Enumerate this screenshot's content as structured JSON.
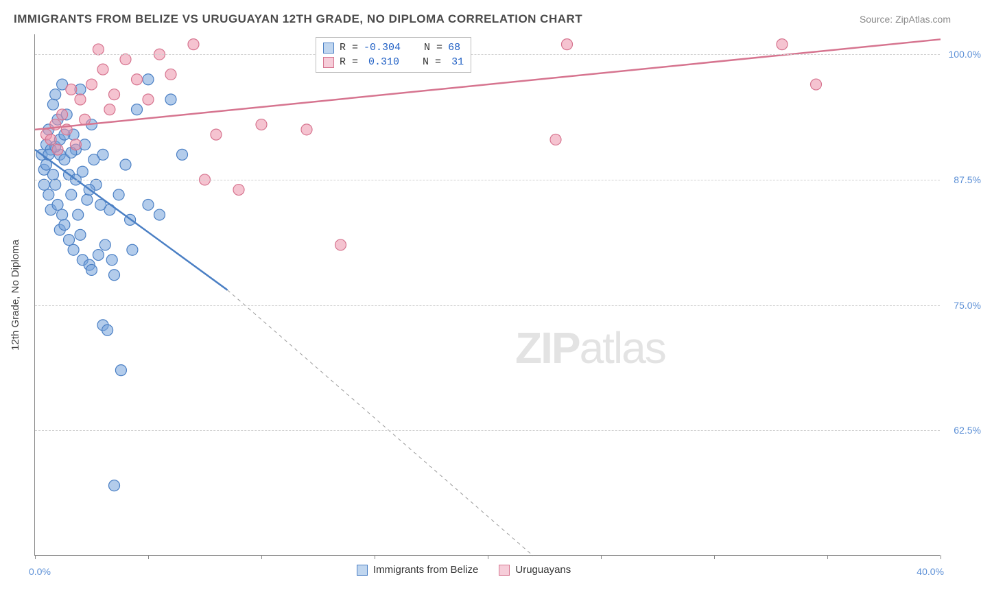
{
  "title": "IMMIGRANTS FROM BELIZE VS URUGUAYAN 12TH GRADE, NO DIPLOMA CORRELATION CHART",
  "source_prefix": "Source: ",
  "source_name": "ZipAtlas.com",
  "y_axis_label": "12th Grade, No Diploma",
  "watermark_part1": "ZIP",
  "watermark_part2": "atlas",
  "chart": {
    "type": "scatter",
    "xlim": [
      0,
      40
    ],
    "ylim": [
      50,
      102
    ],
    "x_start_label": "0.0%",
    "x_end_label": "40.0%",
    "x_ticks": [
      0,
      5,
      10,
      15,
      20,
      25,
      30,
      35,
      40
    ],
    "y_gridlines": [
      {
        "value": 62.5,
        "label": "62.5%"
      },
      {
        "value": 75.0,
        "label": "75.0%"
      },
      {
        "value": 87.5,
        "label": "87.5%"
      },
      {
        "value": 100.0,
        "label": "100.0%"
      }
    ],
    "background_color": "#ffffff",
    "grid_color": "#d0d0d0",
    "axis_color": "#888888",
    "label_color": "#5b8fd6",
    "marker_radius": 8,
    "marker_opacity": 0.55,
    "series": [
      {
        "name": "Immigrants from Belize",
        "color": "#74a3db",
        "stroke": "#4a7fc4",
        "R": "-0.304",
        "N": "68",
        "trend": {
          "x1": 0,
          "y1": 90.5,
          "x2": 8.5,
          "y2": 76.5,
          "x2_dash": 22,
          "y2_dash": 50
        },
        "points": [
          [
            0.3,
            90.0
          ],
          [
            0.4,
            88.5
          ],
          [
            0.5,
            91.0
          ],
          [
            0.5,
            89.0
          ],
          [
            0.6,
            92.5
          ],
          [
            0.6,
            86.0
          ],
          [
            0.7,
            90.5
          ],
          [
            0.7,
            84.5
          ],
          [
            0.8,
            95.0
          ],
          [
            0.8,
            88.0
          ],
          [
            0.9,
            96.0
          ],
          [
            0.9,
            87.0
          ],
          [
            1.0,
            93.5
          ],
          [
            1.0,
            85.0
          ],
          [
            1.1,
            90.0
          ],
          [
            1.1,
            82.5
          ],
          [
            1.2,
            97.0
          ],
          [
            1.2,
            84.0
          ],
          [
            1.3,
            89.5
          ],
          [
            1.3,
            83.0
          ],
          [
            1.4,
            94.0
          ],
          [
            1.5,
            88.0
          ],
          [
            1.5,
            81.5
          ],
          [
            1.6,
            86.0
          ],
          [
            1.7,
            92.0
          ],
          [
            1.7,
            80.5
          ],
          [
            1.8,
            90.5
          ],
          [
            1.9,
            84.0
          ],
          [
            2.0,
            96.5
          ],
          [
            2.0,
            82.0
          ],
          [
            2.1,
            79.5
          ],
          [
            2.2,
            91.0
          ],
          [
            2.3,
            85.5
          ],
          [
            2.4,
            79.0
          ],
          [
            2.5,
            93.0
          ],
          [
            2.5,
            78.5
          ],
          [
            2.7,
            87.0
          ],
          [
            2.8,
            80.0
          ],
          [
            3.0,
            90.0
          ],
          [
            3.0,
            73.0
          ],
          [
            3.2,
            72.5
          ],
          [
            3.3,
            84.5
          ],
          [
            3.5,
            78.0
          ],
          [
            3.5,
            57.0
          ],
          [
            3.8,
            68.5
          ],
          [
            4.0,
            89.0
          ],
          [
            4.2,
            83.5
          ],
          [
            4.5,
            94.5
          ],
          [
            5.0,
            85.0
          ],
          [
            5.0,
            97.5
          ],
          [
            5.5,
            84.0
          ],
          [
            6.0,
            95.5
          ],
          [
            6.5,
            90.0
          ],
          [
            0.4,
            87.0
          ],
          [
            0.6,
            90.0
          ],
          [
            0.9,
            90.8
          ],
          [
            1.1,
            91.5
          ],
          [
            1.3,
            92.0
          ],
          [
            1.6,
            90.2
          ],
          [
            1.8,
            87.5
          ],
          [
            2.1,
            88.3
          ],
          [
            2.4,
            86.5
          ],
          [
            2.6,
            89.5
          ],
          [
            2.9,
            85.0
          ],
          [
            3.1,
            81.0
          ],
          [
            3.4,
            79.5
          ],
          [
            3.7,
            86.0
          ],
          [
            4.3,
            80.5
          ]
        ]
      },
      {
        "name": "Uruguayans",
        "color": "#ec91aa",
        "stroke": "#d6748f",
        "R": "0.310",
        "N": "31",
        "trend": {
          "x1": 0,
          "y1": 92.5,
          "x2": 40,
          "y2": 101.5
        },
        "points": [
          [
            0.5,
            92.0
          ],
          [
            0.7,
            91.5
          ],
          [
            0.9,
            93.0
          ],
          [
            1.0,
            90.5
          ],
          [
            1.2,
            94.0
          ],
          [
            1.4,
            92.5
          ],
          [
            1.6,
            96.5
          ],
          [
            1.8,
            91.0
          ],
          [
            2.0,
            95.5
          ],
          [
            2.2,
            93.5
          ],
          [
            2.5,
            97.0
          ],
          [
            2.8,
            100.5
          ],
          [
            3.0,
            98.5
          ],
          [
            3.3,
            94.5
          ],
          [
            3.5,
            96.0
          ],
          [
            4.0,
            99.5
          ],
          [
            4.5,
            97.5
          ],
          [
            5.0,
            95.5
          ],
          [
            5.5,
            100.0
          ],
          [
            6.0,
            98.0
          ],
          [
            7.0,
            101.0
          ],
          [
            7.5,
            87.5
          ],
          [
            8.0,
            92.0
          ],
          [
            9.0,
            86.5
          ],
          [
            10.0,
            93.0
          ],
          [
            12.0,
            92.5
          ],
          [
            13.5,
            81.0
          ],
          [
            23.0,
            91.5
          ],
          [
            23.5,
            101.0
          ],
          [
            33.0,
            101.0
          ],
          [
            34.5,
            97.0
          ]
        ]
      }
    ]
  },
  "legend": {
    "item1": "Immigrants from Belize",
    "item2": "Uruguayans"
  },
  "stats_box": {
    "r_label": "R =",
    "n_label": "N ="
  }
}
